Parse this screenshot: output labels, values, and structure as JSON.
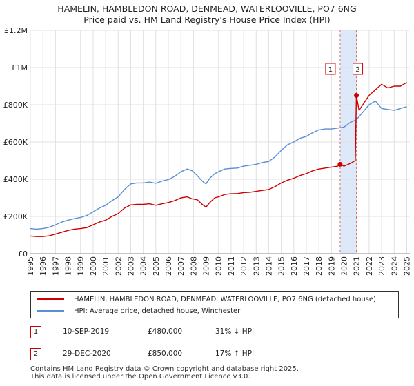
{
  "header": {
    "title_line1": "HAMELIN, HAMBLEDON ROAD, DENMEAD, WATERLOOVILLE, PO7 6NG",
    "title_line2": "Price paid vs. HM Land Registry's House Price Index (HPI)"
  },
  "colors": {
    "property": "#cc0000",
    "hpi": "#5b8ed6",
    "band": "#dde8f8",
    "grid": "#e0e0e0",
    "vline": "#dd6a6a"
  },
  "legend": {
    "property_label": "HAMELIN, HAMBLEDON ROAD, DENMEAD, WATERLOOVILLE, PO7 6NG (detached house)",
    "hpi_label": "HPI: Average price, detached house, Winchester"
  },
  "transactions": [
    {
      "id": "1",
      "date": "10-SEP-2019",
      "price": "£480,000",
      "hpi_delta": "31% ↓ HPI"
    },
    {
      "id": "2",
      "date": "29-DEC-2020",
      "price": "£850,000",
      "hpi_delta": "17% ↑ HPI"
    }
  ],
  "footer": {
    "line1": "Contains HM Land Registry data © Crown copyright and database right 2025.",
    "line2": "This data is licensed under the Open Government Licence v3.0."
  },
  "chart_data": {
    "type": "line",
    "title": "HAMELIN, HAMBLEDON ROAD, DENMEAD, WATERLOOVILLE, PO7 6NG",
    "subtitle": "Price paid vs. HM Land Registry's House Price Index (HPI)",
    "xlabel": "",
    "ylabel": "",
    "xlim": [
      1995,
      2025.25
    ],
    "ylim": [
      0,
      1200000
    ],
    "x_ticks": [
      1995,
      1996,
      1997,
      1998,
      1999,
      2000,
      2001,
      2002,
      2003,
      2004,
      2005,
      2006,
      2007,
      2008,
      2009,
      2010,
      2011,
      2012,
      2013,
      2014,
      2015,
      2016,
      2017,
      2018,
      2019,
      2020,
      2021,
      2022,
      2023,
      2024,
      2025
    ],
    "x_tick_labels": [
      "1995",
      "1996",
      "1997",
      "1998",
      "1999",
      "2000",
      "2001",
      "2002",
      "2003",
      "2004",
      "2005",
      "2006",
      "2007",
      "2008",
      "2009",
      "2010",
      "2011",
      "2012",
      "2013",
      "2014",
      "2015",
      "2016",
      "2017",
      "2018",
      "2019",
      "2020",
      "2021",
      "2022",
      "2023",
      "2024",
      "2025"
    ],
    "y_ticks": [
      0,
      200000,
      400000,
      600000,
      800000,
      1000000,
      1200000
    ],
    "y_tick_labels": [
      "£0",
      "£200K",
      "£400K",
      "£600K",
      "£800K",
      "£1M",
      "£1.2M"
    ],
    "grid": true,
    "legend_position": "below",
    "shaded_band": {
      "x_start": 2019.69,
      "x_end": 2020.99
    },
    "markers": [
      {
        "label": "1",
        "x": 2019.69,
        "y": 480000
      },
      {
        "label": "2",
        "x": 2020.99,
        "y": 850000
      }
    ],
    "series": [
      {
        "name": "HAMELIN, HAMBLEDON ROAD, DENMEAD, WATERLOOVILLE, PO7 6NG (detached house)",
        "color": "#cc0000",
        "x": [
          1995,
          1995.5,
          1996,
          1996.5,
          1997,
          1997.5,
          1998,
          1998.5,
          1999,
          1999.5,
          2000,
          2000.5,
          2001,
          2001.5,
          2002,
          2002.5,
          2003,
          2003.5,
          2004,
          2004.5,
          2005,
          2005.5,
          2006,
          2006.5,
          2007,
          2007.5,
          2007.9,
          2008.3,
          2008.7,
          2009.0,
          2009.3,
          2009.7,
          2010,
          2010.5,
          2011,
          2011.5,
          2012,
          2012.5,
          2013,
          2013.5,
          2014,
          2014.5,
          2015,
          2015.5,
          2016,
          2016.5,
          2017,
          2017.5,
          2018,
          2018.5,
          2019,
          2019.5,
          2019.69,
          2020,
          2020.5,
          2020.9,
          2020.99,
          2021.2,
          2021.5,
          2022,
          2022.5,
          2023,
          2023.5,
          2024,
          2024.5,
          2025
        ],
        "y": [
          95000,
          92000,
          92000,
          96000,
          105000,
          115000,
          125000,
          132000,
          135000,
          140000,
          155000,
          170000,
          180000,
          200000,
          215000,
          245000,
          262000,
          265000,
          265000,
          268000,
          260000,
          268000,
          275000,
          285000,
          300000,
          305000,
          295000,
          290000,
          265000,
          250000,
          275000,
          300000,
          305000,
          318000,
          322000,
          323000,
          328000,
          330000,
          335000,
          340000,
          345000,
          360000,
          380000,
          395000,
          405000,
          420000,
          430000,
          445000,
          455000,
          460000,
          465000,
          470000,
          480000,
          470000,
          485000,
          500000,
          850000,
          770000,
          800000,
          850000,
          880000,
          910000,
          890000,
          900000,
          900000,
          920000
        ]
      },
      {
        "name": "HPI: Average price, detached house, Winchester",
        "color": "#5b8ed6",
        "x": [
          1995,
          1995.5,
          1996,
          1996.5,
          1997,
          1997.5,
          1998,
          1998.5,
          1999,
          1999.5,
          2000,
          2000.5,
          2001,
          2001.5,
          2002,
          2002.5,
          2003,
          2003.5,
          2004,
          2004.5,
          2005,
          2005.5,
          2006,
          2006.5,
          2007,
          2007.5,
          2007.9,
          2008.3,
          2008.7,
          2009.0,
          2009.3,
          2009.7,
          2010,
          2010.5,
          2011,
          2011.5,
          2012,
          2012.5,
          2013,
          2013.5,
          2014,
          2014.5,
          2015,
          2015.5,
          2016,
          2016.5,
          2017,
          2017.5,
          2018,
          2018.5,
          2019,
          2019.5,
          2020,
          2020.5,
          2021,
          2021.5,
          2022,
          2022.5,
          2023,
          2023.5,
          2024,
          2024.5,
          2025
        ],
        "y": [
          135000,
          132000,
          135000,
          142000,
          155000,
          170000,
          180000,
          188000,
          195000,
          205000,
          225000,
          245000,
          260000,
          285000,
          305000,
          345000,
          375000,
          380000,
          380000,
          385000,
          378000,
          390000,
          398000,
          415000,
          440000,
          455000,
          445000,
          420000,
          390000,
          375000,
          405000,
          430000,
          440000,
          455000,
          458000,
          460000,
          470000,
          475000,
          480000,
          490000,
          495000,
          520000,
          555000,
          585000,
          600000,
          620000,
          630000,
          650000,
          665000,
          670000,
          670000,
          675000,
          680000,
          705000,
          720000,
          760000,
          800000,
          820000,
          780000,
          775000,
          770000,
          780000,
          790000
        ]
      }
    ]
  }
}
